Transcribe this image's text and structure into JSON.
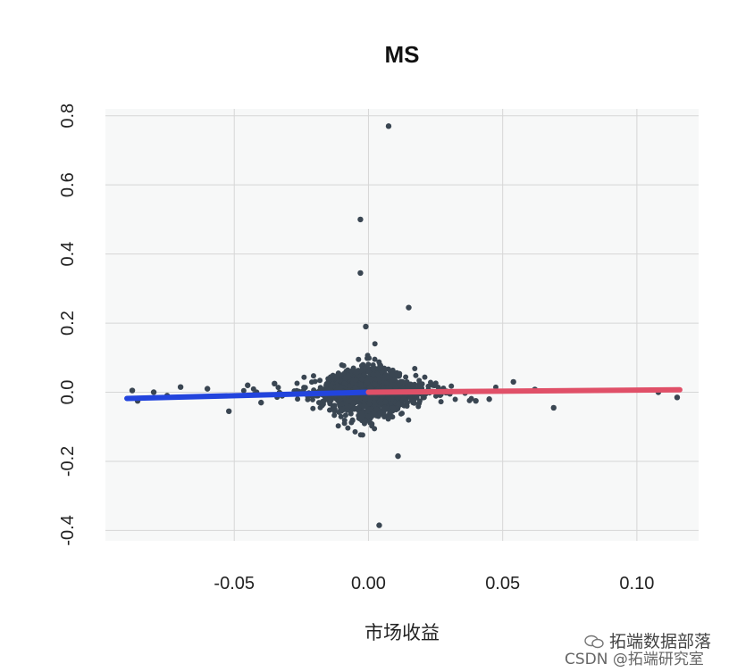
{
  "chart_data": {
    "type": "scatter",
    "title": "MS",
    "xlabel": "市场收益",
    "ylabel": "",
    "xlim": [
      -0.098,
      0.123
    ],
    "ylim": [
      -0.43,
      0.82
    ],
    "x_ticks": [
      -0.05,
      0.0,
      0.05,
      0.1
    ],
    "x_tick_labels": [
      "-0.05",
      "0.00",
      "0.05",
      "0.10"
    ],
    "y_ticks": [
      -0.4,
      -0.2,
      0.0,
      0.2,
      0.4,
      0.6,
      0.8
    ],
    "y_tick_labels": [
      "-0.4",
      "-0.2",
      "0.0",
      "0.2",
      "0.4",
      "0.6",
      "0.8"
    ],
    "grid": true,
    "colors": {
      "points": "#3a4652",
      "negative_fit": "#2244dd",
      "positive_fit": "#e05068",
      "panel": "#f7f8f8",
      "grid": "#d6d6d6"
    },
    "outliers": [
      {
        "x": 0.0075,
        "y": 0.77
      },
      {
        "x": -0.003,
        "y": 0.5
      },
      {
        "x": -0.003,
        "y": 0.345
      },
      {
        "x": 0.015,
        "y": 0.245
      },
      {
        "x": -0.001,
        "y": 0.19
      },
      {
        "x": 0.004,
        "y": -0.385
      },
      {
        "x": 0.011,
        "y": -0.185
      },
      {
        "x": -0.088,
        "y": 0.005
      },
      {
        "x": -0.086,
        "y": -0.025
      },
      {
        "x": -0.052,
        "y": -0.055
      },
      {
        "x": 0.069,
        "y": -0.045
      },
      {
        "x": 0.115,
        "y": -0.015
      },
      {
        "x": 0.108,
        "y": 0.0
      },
      {
        "x": 0.062,
        "y": 0.008
      },
      {
        "x": 0.054,
        "y": 0.03
      },
      {
        "x": -0.07,
        "y": 0.015
      },
      {
        "x": -0.06,
        "y": 0.01
      },
      {
        "x": -0.075,
        "y": -0.01
      },
      {
        "x": -0.045,
        "y": 0.02
      },
      {
        "x": -0.04,
        "y": -0.03
      },
      {
        "x": -0.08,
        "y": 0.0
      },
      {
        "x": 0.045,
        "y": -0.02
      },
      {
        "x": 0.04,
        "y": -0.025
      },
      {
        "x": -0.035,
        "y": 0.025
      }
    ],
    "fit_lines": [
      {
        "name": "",
        "x": [
          -0.09,
          0.0
        ],
        "y": [
          -0.018,
          0.0
        ]
      },
      {
        "name": "",
        "x": [
          0.0,
          0.116
        ],
        "y": [
          0.0,
          0.007
        ]
      }
    ]
  },
  "watermark": {
    "line1": "拓端数据部落",
    "line2": "CSDN @拓端研究室"
  }
}
